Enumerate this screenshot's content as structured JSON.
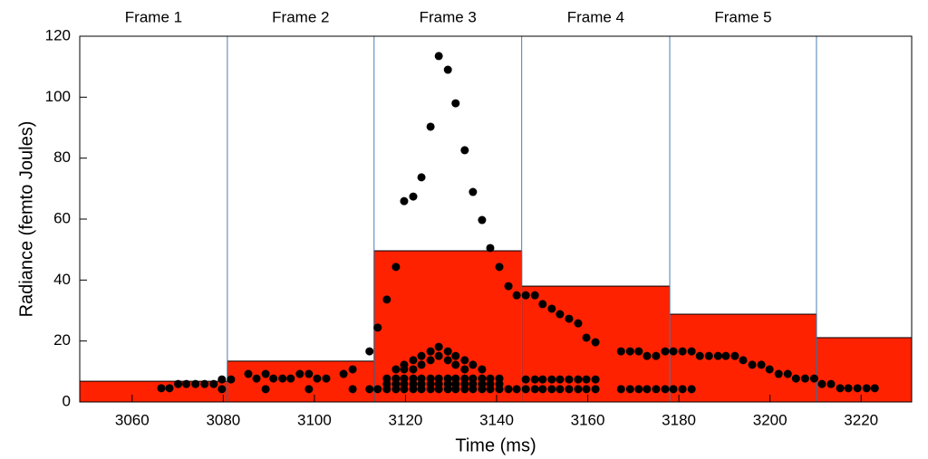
{
  "chart_data": {
    "type": "bar+scatter",
    "xlabel": "Time (ms)",
    "ylabel": "Radiance (femto Joules)",
    "frame_labels": [
      "Frame 1",
      "Frame 2",
      "Frame 3",
      "Frame 4",
      "Frame 5"
    ],
    "bins": [
      3048.5,
      3080.9,
      3113.1,
      3145.5,
      3178.0,
      3210.2,
      3231.1
    ],
    "values": [
      6.8,
      13.4,
      49.6,
      38,
      28.8,
      21.1
    ],
    "bar_color": "#ff2200",
    "boundary_color": "#4a7fb0",
    "points": {
      "color": "#000000",
      "x": [
        3066.4,
        3068.2,
        3070.1,
        3071.9,
        3073.9,
        3075.9,
        3077.9,
        3079.7,
        3079.7,
        3081.7,
        3085.5,
        3087.3,
        3089.3,
        3089.3,
        3091.0,
        3093.0,
        3094.8,
        3096.8,
        3098.8,
        3098.8,
        3100.6,
        3102.6,
        3106.4,
        3108.4,
        3108.4,
        3112.1,
        3112.1,
        3113.9,
        3115.9,
        3117.9,
        3119.7,
        3121.7,
        3123.5,
        3125.5,
        3127.3,
        3129.3,
        3131.0,
        3133.0,
        3134.8,
        3136.8,
        3138.6,
        3140.6,
        3142.6,
        3144.4,
        3146.4,
        3113.9,
        3115.9,
        3117.9,
        3119.7,
        3121.7,
        3123.5,
        3125.5,
        3127.3,
        3129.3,
        3131.0,
        3133.0,
        3134.8,
        3136.8,
        3138.6,
        3140.6,
        3142.6,
        3144.4,
        3146.4,
        3148.4,
        3150.1,
        3152.1,
        3153.9,
        3155.9,
        3157.9,
        3159.7,
        3161.7,
        3115.9,
        3117.9,
        3119.7,
        3121.7,
        3123.5,
        3125.5,
        3127.3,
        3129.3,
        3131.0,
        3133.0,
        3134.8,
        3136.8,
        3138.6,
        3140.6,
        3115.9,
        3117.9,
        3119.7,
        3121.7,
        3123.5,
        3125.5,
        3127.3,
        3129.3,
        3131.0,
        3133.0,
        3134.8,
        3136.8,
        3138.6,
        3140.6,
        3146.4,
        3148.4,
        3150.1,
        3152.1,
        3153.9,
        3155.9,
        3157.9,
        3159.7,
        3161.7,
        3117.9,
        3119.7,
        3121.7,
        3123.5,
        3125.5,
        3127.3,
        3129.3,
        3131.0,
        3133.0,
        3134.8,
        3136.8,
        3119.7,
        3121.7,
        3123.5,
        3125.5,
        3127.3,
        3129.3,
        3131.0,
        3133.0,
        3148.4,
        3150.1,
        3152.1,
        3153.9,
        3155.9,
        3157.9,
        3159.7,
        3161.7,
        3167.3,
        3169.3,
        3171.2,
        3173.0,
        3175.0,
        3177.0,
        3178.8,
        3180.8,
        3182.8,
        3184.6,
        3186.6,
        3188.6,
        3190.3,
        3192.3,
        3194.1,
        3196.1,
        3198.1,
        3199.9,
        3201.9,
        3203.9,
        3205.7,
        3207.7,
        3209.7,
        3211.4,
        3213.4,
        3215.4,
        3217.2,
        3219.2,
        3221.2,
        3223.0,
        3167.3,
        3169.3,
        3171.2,
        3173.0,
        3175.0,
        3177.0,
        3178.8,
        3180.8,
        3182.8
      ],
      "y": [
        4.5,
        4.5,
        5.9,
        5.9,
        5.9,
        5.9,
        5.9,
        7.4,
        4.2,
        7.4,
        9.2,
        7.7,
        4.2,
        9.2,
        7.7,
        7.7,
        7.7,
        9.2,
        9.2,
        4.2,
        7.7,
        7.7,
        9.2,
        10.7,
        4.2,
        16.6,
        4.2,
        24.4,
        33.6,
        44.3,
        65.9,
        67.4,
        73.7,
        90.3,
        113.5,
        109,
        98,
        82.6,
        68.9,
        59.7,
        50.5,
        44.3,
        38,
        35,
        35,
        4.2,
        4.2,
        4.2,
        4.2,
        4.2,
        4.2,
        4.2,
        4.2,
        4.2,
        4.2,
        4.2,
        4.2,
        4.2,
        4.2,
        4.2,
        4.2,
        4.2,
        4.2,
        4.2,
        4.2,
        4.2,
        4.2,
        4.2,
        4.2,
        4.2,
        4.2,
        5.9,
        5.9,
        5.9,
        5.9,
        5.9,
        5.9,
        5.9,
        5.9,
        5.9,
        5.9,
        5.9,
        5.9,
        5.9,
        5.9,
        7.7,
        7.7,
        7.7,
        7.7,
        7.7,
        7.7,
        7.7,
        7.7,
        7.7,
        7.7,
        7.7,
        7.7,
        7.7,
        7.7,
        7.4,
        7.4,
        7.4,
        7.4,
        7.4,
        7.4,
        7.4,
        7.4,
        7.4,
        10.7,
        12.2,
        13.7,
        15.1,
        16.6,
        18.1,
        16.6,
        15.1,
        13.7,
        12.2,
        10.7,
        10.7,
        10.7,
        12.2,
        13.7,
        15.1,
        13.7,
        12.2,
        10.7,
        35,
        32.1,
        30.6,
        28.8,
        27.3,
        25.8,
        21.1,
        19.6,
        16.6,
        16.6,
        16.6,
        15.1,
        15.1,
        16.6,
        16.6,
        16.6,
        16.6,
        15.1,
        15.1,
        15.1,
        15.1,
        15.1,
        13.7,
        12.2,
        12.2,
        10.7,
        9.2,
        9.2,
        7.7,
        7.7,
        7.7,
        5.9,
        5.9,
        4.5,
        4.5,
        4.5,
        4.5,
        4.5,
        4.2,
        4.2,
        4.2,
        4.2,
        4.2,
        4.2,
        4.2,
        4.2,
        4.2
      ]
    },
    "xlim": [
      3048.5,
      3231.1
    ],
    "ylim": [
      0,
      120
    ],
    "xticks": [
      3060,
      3080,
      3100,
      3120,
      3140,
      3160,
      3180,
      3200,
      3220
    ],
    "yticks": [
      0,
      20,
      40,
      60,
      80,
      100,
      120
    ]
  }
}
